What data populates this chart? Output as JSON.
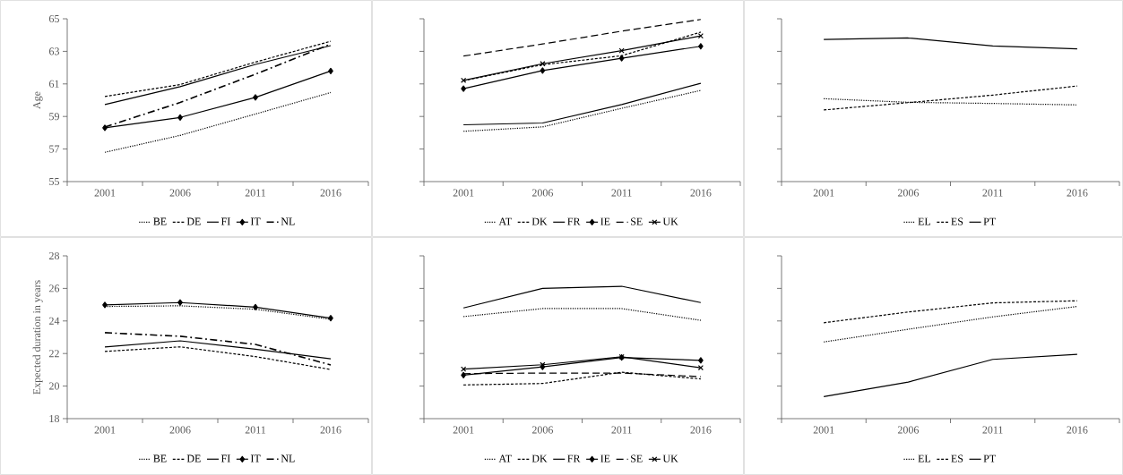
{
  "chart_data": [
    {
      "type": "line",
      "ylabel": "Age",
      "categories": [
        "2001",
        "2006",
        "2011",
        "2016"
      ],
      "ylim": [
        55,
        65
      ],
      "yticks": [
        55,
        57,
        59,
        61,
        63,
        65
      ],
      "legend": "bottom",
      "series": [
        {
          "name": "BE",
          "color": "#000000",
          "line_style": "dotted",
          "marker": "none",
          "values": [
            56.8,
            57.84,
            59.15,
            60.47
          ]
        },
        {
          "name": "DE",
          "color": "#000000",
          "line_style": "dashed",
          "marker": "none",
          "values": [
            60.23,
            60.96,
            62.34,
            63.62
          ]
        },
        {
          "name": "FI",
          "color": "#000000",
          "line_style": "solid",
          "marker": "none",
          "values": [
            59.73,
            60.83,
            62.2,
            63.35
          ]
        },
        {
          "name": "IT",
          "color": "#000000",
          "line_style": "solid",
          "marker": "diamond",
          "values": [
            58.3,
            58.94,
            60.17,
            61.79
          ]
        },
        {
          "name": "NL",
          "color": "#000000",
          "line_style": "dashdot",
          "marker": "none",
          "values": [
            58.35,
            59.86,
            61.6,
            63.44
          ]
        }
      ]
    },
    {
      "type": "line",
      "categories": [
        "2001",
        "2006",
        "2011",
        "2016"
      ],
      "ylim": [
        55,
        65
      ],
      "yticks": [
        55,
        57,
        59,
        61,
        63,
        65
      ],
      "tick_labels": "x",
      "legend": "bottom",
      "series": [
        {
          "name": "AT",
          "color": "#000000",
          "line_style": "dotted",
          "marker": "none",
          "values": [
            58.09,
            58.36,
            59.5,
            60.6
          ]
        },
        {
          "name": "DK",
          "color": "#000000",
          "line_style": "dashed",
          "marker": "none",
          "values": [
            61.2,
            62.18,
            62.73,
            64.18
          ]
        },
        {
          "name": "FR",
          "color": "#000000",
          "line_style": "solid",
          "marker": "none",
          "values": [
            58.49,
            58.6,
            59.73,
            61.04
          ]
        },
        {
          "name": "IE",
          "color": "#000000",
          "line_style": "solid",
          "marker": "diamond",
          "values": [
            60.71,
            61.82,
            62.58,
            63.31
          ]
        },
        {
          "name": "SE",
          "color": "#000000",
          "line_style": "longdashed",
          "marker": "none",
          "values": [
            62.71,
            63.45,
            64.24,
            64.96
          ]
        },
        {
          "name": "UK",
          "color": "#000000",
          "line_style": "solid",
          "marker": "cross",
          "values": [
            61.22,
            62.24,
            63.04,
            63.95
          ]
        }
      ]
    },
    {
      "type": "line",
      "categories": [
        "2001",
        "2006",
        "2011",
        "2016"
      ],
      "ylim": [
        55,
        65
      ],
      "yticks": [
        55,
        57,
        59,
        61,
        63,
        65
      ],
      "tick_labels": "x",
      "legend": "bottom",
      "series": [
        {
          "name": "EL",
          "color": "#000000",
          "line_style": "dotted",
          "marker": "none",
          "values": [
            60.09,
            59.87,
            59.8,
            59.71
          ]
        },
        {
          "name": "ES",
          "color": "#000000",
          "line_style": "dashed",
          "marker": "none",
          "values": [
            59.4,
            59.85,
            60.31,
            60.87
          ]
        },
        {
          "name": "PT",
          "color": "#000000",
          "line_style": "solid",
          "marker": "none",
          "values": [
            63.73,
            63.82,
            63.33,
            63.15
          ]
        }
      ]
    },
    {
      "type": "line",
      "ylabel": "Expected duration in years",
      "categories": [
        "2001",
        "2006",
        "2011",
        "2016"
      ],
      "ylim": [
        18,
        28
      ],
      "yticks": [
        18,
        20,
        22,
        24,
        26,
        28
      ],
      "legend": "bottom",
      "series": [
        {
          "name": "BE",
          "color": "#000000",
          "line_style": "dotted",
          "marker": "none",
          "values": [
            24.89,
            24.93,
            24.72,
            24.1
          ]
        },
        {
          "name": "DE",
          "color": "#000000",
          "line_style": "dashed",
          "marker": "none",
          "values": [
            22.13,
            22.41,
            21.81,
            21.02
          ]
        },
        {
          "name": "FI",
          "color": "#000000",
          "line_style": "solid",
          "marker": "none",
          "values": [
            22.4,
            22.78,
            22.27,
            21.67
          ]
        },
        {
          "name": "IT",
          "color": "#000000",
          "line_style": "solid",
          "marker": "diamond",
          "values": [
            24.98,
            25.13,
            24.85,
            24.17
          ]
        },
        {
          "name": "NL",
          "color": "#000000",
          "line_style": "dashdot",
          "marker": "none",
          "values": [
            23.28,
            23.06,
            22.56,
            21.3
          ]
        }
      ]
    },
    {
      "type": "line",
      "categories": [
        "2001",
        "2006",
        "2011",
        "2016"
      ],
      "ylim": [
        18,
        28
      ],
      "yticks": [
        18,
        20,
        22,
        24,
        26,
        28
      ],
      "tick_labels": "x",
      "legend": "bottom",
      "series": [
        {
          "name": "AT",
          "color": "#000000",
          "line_style": "dotted",
          "marker": "none",
          "values": [
            24.27,
            24.76,
            24.76,
            24.04
          ]
        },
        {
          "name": "DK",
          "color": "#000000",
          "line_style": "dashed",
          "marker": "none",
          "values": [
            20.07,
            20.16,
            20.85,
            20.44
          ]
        },
        {
          "name": "FR",
          "color": "#000000",
          "line_style": "solid",
          "marker": "none",
          "values": [
            24.8,
            26.0,
            26.13,
            25.13
          ]
        },
        {
          "name": "IE",
          "color": "#000000",
          "line_style": "solid",
          "marker": "diamond",
          "values": [
            20.67,
            21.18,
            21.76,
            21.58
          ]
        },
        {
          "name": "SE",
          "color": "#000000",
          "line_style": "longdashed",
          "marker": "none",
          "values": [
            20.76,
            20.8,
            20.8,
            20.58
          ]
        },
        {
          "name": "UK",
          "color": "#000000",
          "line_style": "solid",
          "marker": "cross",
          "values": [
            21.04,
            21.31,
            21.8,
            21.13
          ]
        }
      ]
    },
    {
      "type": "line",
      "categories": [
        "2001",
        "2006",
        "2011",
        "2016"
      ],
      "ylim": [
        18,
        28
      ],
      "yticks": [
        18,
        20,
        22,
        24,
        26,
        28
      ],
      "tick_labels": "x",
      "legend": "bottom",
      "series": [
        {
          "name": "EL",
          "color": "#000000",
          "line_style": "dotted",
          "marker": "none",
          "values": [
            22.71,
            23.49,
            24.25,
            24.89
          ]
        },
        {
          "name": "ES",
          "color": "#000000",
          "line_style": "dashed",
          "marker": "none",
          "values": [
            23.89,
            24.55,
            25.11,
            25.24
          ]
        },
        {
          "name": "PT",
          "color": "#000000",
          "line_style": "solid",
          "marker": "none",
          "values": [
            19.35,
            20.25,
            21.64,
            21.95
          ]
        }
      ]
    }
  ]
}
